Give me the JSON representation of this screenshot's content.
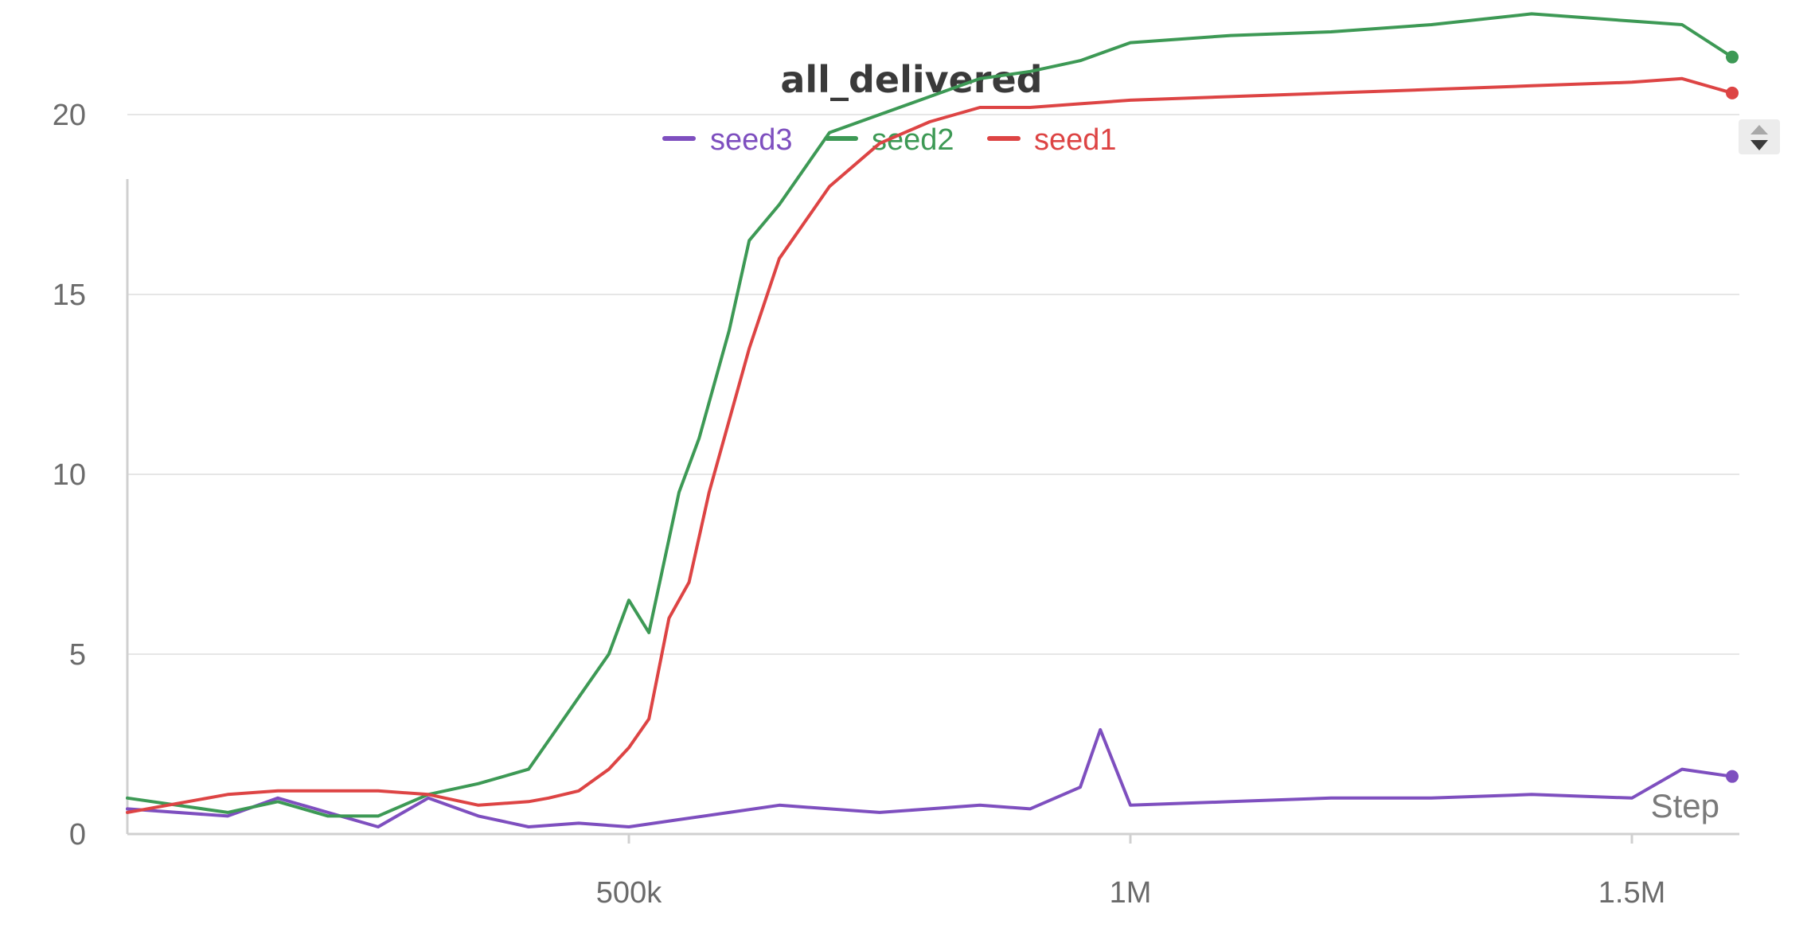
{
  "chart_data": {
    "type": "line",
    "title": "all_delivered",
    "xlabel": "Step",
    "ylabel": "",
    "xlim": [
      0,
      1600000
    ],
    "ylim": [
      0,
      24
    ],
    "x_ticks": [
      {
        "value": 500000,
        "label": "500k"
      },
      {
        "value": 1000000,
        "label": "1M"
      },
      {
        "value": 1500000,
        "label": "1.5M"
      }
    ],
    "y_ticks": [
      0,
      5,
      10,
      15,
      20
    ],
    "grid": true,
    "legend_position": "top-center",
    "series": [
      {
        "name": "seed3",
        "color": "#7e4fbf",
        "points": [
          [
            0,
            0.7
          ],
          [
            100000,
            0.5
          ],
          [
            150000,
            1.0
          ],
          [
            200000,
            0.6
          ],
          [
            250000,
            0.2
          ],
          [
            300000,
            1.0
          ],
          [
            350000,
            0.5
          ],
          [
            400000,
            0.2
          ],
          [
            450000,
            0.3
          ],
          [
            500000,
            0.2
          ],
          [
            550000,
            0.4
          ],
          [
            600000,
            0.6
          ],
          [
            650000,
            0.8
          ],
          [
            700000,
            0.7
          ],
          [
            750000,
            0.6
          ],
          [
            800000,
            0.7
          ],
          [
            850000,
            0.8
          ],
          [
            900000,
            0.7
          ],
          [
            950000,
            1.3
          ],
          [
            970000,
            2.9
          ],
          [
            1000000,
            0.8
          ],
          [
            1100000,
            0.9
          ],
          [
            1200000,
            1.0
          ],
          [
            1300000,
            1.0
          ],
          [
            1400000,
            1.1
          ],
          [
            1500000,
            1.0
          ],
          [
            1550000,
            1.8
          ],
          [
            1600000,
            1.6
          ]
        ]
      },
      {
        "name": "seed2",
        "color": "#3d9955",
        "points": [
          [
            0,
            1.0
          ],
          [
            100000,
            0.6
          ],
          [
            150000,
            0.9
          ],
          [
            200000,
            0.5
          ],
          [
            250000,
            0.5
          ],
          [
            300000,
            1.1
          ],
          [
            350000,
            1.4
          ],
          [
            400000,
            1.8
          ],
          [
            420000,
            2.6
          ],
          [
            450000,
            3.8
          ],
          [
            480000,
            5.0
          ],
          [
            500000,
            6.5
          ],
          [
            520000,
            5.6
          ],
          [
            550000,
            9.5
          ],
          [
            570000,
            11.0
          ],
          [
            600000,
            14.0
          ],
          [
            620000,
            16.5
          ],
          [
            650000,
            17.5
          ],
          [
            700000,
            19.5
          ],
          [
            750000,
            20.0
          ],
          [
            800000,
            20.5
          ],
          [
            850000,
            21.0
          ],
          [
            900000,
            21.2
          ],
          [
            950000,
            21.5
          ],
          [
            1000000,
            22.0
          ],
          [
            1100000,
            22.2
          ],
          [
            1200000,
            22.3
          ],
          [
            1300000,
            22.5
          ],
          [
            1400000,
            22.8
          ],
          [
            1500000,
            22.6
          ],
          [
            1550000,
            22.5
          ],
          [
            1600000,
            21.6
          ]
        ]
      },
      {
        "name": "seed1",
        "color": "#dd4444",
        "points": [
          [
            0,
            0.6
          ],
          [
            100000,
            1.1
          ],
          [
            150000,
            1.2
          ],
          [
            200000,
            1.2
          ],
          [
            250000,
            1.2
          ],
          [
            300000,
            1.1
          ],
          [
            350000,
            0.8
          ],
          [
            400000,
            0.9
          ],
          [
            420000,
            1.0
          ],
          [
            450000,
            1.2
          ],
          [
            480000,
            1.8
          ],
          [
            500000,
            2.4
          ],
          [
            520000,
            3.2
          ],
          [
            540000,
            6.0
          ],
          [
            560000,
            7.0
          ],
          [
            580000,
            9.5
          ],
          [
            600000,
            11.5
          ],
          [
            620000,
            13.5
          ],
          [
            650000,
            16.0
          ],
          [
            700000,
            18.0
          ],
          [
            750000,
            19.2
          ],
          [
            800000,
            19.8
          ],
          [
            850000,
            20.2
          ],
          [
            900000,
            20.2
          ],
          [
            950000,
            20.3
          ],
          [
            1000000,
            20.4
          ],
          [
            1100000,
            20.5
          ],
          [
            1200000,
            20.6
          ],
          [
            1300000,
            20.7
          ],
          [
            1400000,
            20.8
          ],
          [
            1500000,
            20.9
          ],
          [
            1550000,
            21.0
          ],
          [
            1600000,
            20.6
          ]
        ]
      }
    ]
  }
}
